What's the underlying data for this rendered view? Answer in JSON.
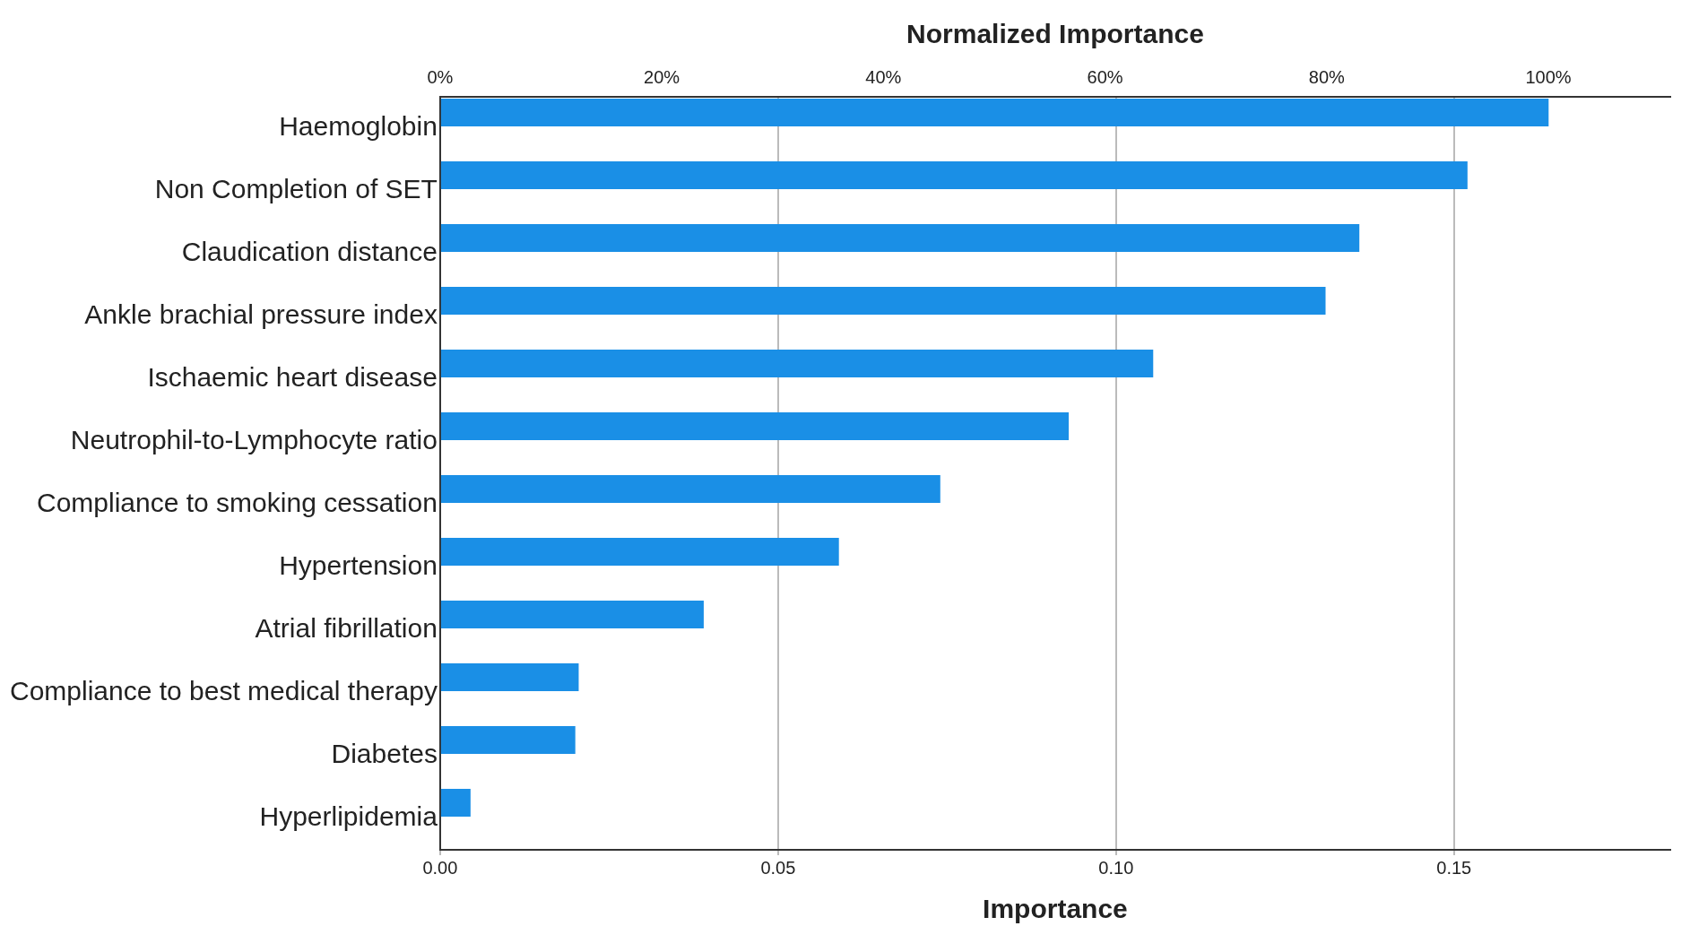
{
  "chart_data": {
    "type": "bar",
    "orientation": "horizontal",
    "xlabel": "Importance",
    "x2label": "Normalized Importance",
    "categories": [
      "Haemoglobin",
      "Non Completion of SET",
      "Claudication distance",
      "Ankle brachial pressure index",
      "Ischaemic heart disease",
      "Neutrophil-to-Lymphocyte ratio",
      "Compliance to smoking cessation",
      "Hypertension",
      "Atrial fibrillation",
      "Compliance to best medical therapy",
      "Diabetes",
      "Hyperlipidemia"
    ],
    "values": [
      0.164,
      0.152,
      0.136,
      0.131,
      0.1055,
      0.093,
      0.074,
      0.059,
      0.039,
      0.0205,
      0.02,
      0.0045
    ],
    "color": "#1a8fe6",
    "xlim": [
      0,
      0.182
    ],
    "xticks": [
      {
        "value": 0,
        "label": "0.00"
      },
      {
        "value": 0.05,
        "label": "0.05"
      },
      {
        "value": 0.1,
        "label": "0.10"
      },
      {
        "value": 0.15,
        "label": "0.15"
      }
    ],
    "x2lim": [
      0,
      111
    ],
    "x2ticks": [
      {
        "value": 0,
        "label": "0%"
      },
      {
        "value": 20,
        "label": "20%"
      },
      {
        "value": 40,
        "label": "40%"
      },
      {
        "value": 60,
        "label": "60%"
      },
      {
        "value": 80,
        "label": "80%"
      },
      {
        "value": 100,
        "label": "100%"
      }
    ],
    "grid": "x",
    "legend": false
  }
}
